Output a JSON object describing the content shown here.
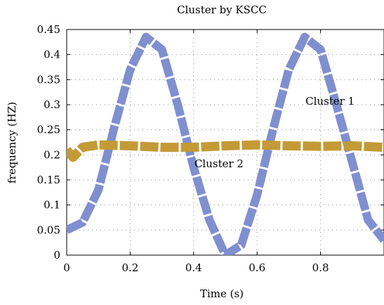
{
  "chart_data": {
    "type": "line",
    "title": "Cluster by KSCC",
    "xlabel": "Time (s)",
    "ylabel": "frequency (HZ)",
    "xlim": [
      0,
      1
    ],
    "ylim": [
      0,
      0.45
    ],
    "x_ticks": [
      0,
      0.2,
      0.4,
      0.6,
      0.8
    ],
    "x_tick_labels": [
      "0",
      "0.2",
      "0.4",
      "0.6",
      "0.8"
    ],
    "y_ticks": [
      0,
      0.05,
      0.1,
      0.15,
      0.2,
      0.25,
      0.3,
      0.35,
      0.4,
      0.45
    ],
    "y_tick_labels": [
      "0",
      "0.05",
      "0.1",
      "0.15",
      "0.2",
      "0.25",
      "0.3",
      "0.35",
      "0.4",
      "0.45"
    ],
    "grid": true,
    "series": [
      {
        "name": "Cluster 1",
        "color": "#7f8fcf",
        "x": [
          0,
          0.05,
          0.1,
          0.15,
          0.2,
          0.25,
          0.3,
          0.35,
          0.4,
          0.45,
          0.5,
          0.55,
          0.6,
          0.65,
          0.7,
          0.75,
          0.8,
          0.85,
          0.9,
          0.95,
          1.0
        ],
        "values": [
          0.05,
          0.065,
          0.13,
          0.255,
          0.37,
          0.435,
          0.41,
          0.3,
          0.175,
          0.07,
          0.0,
          0.02,
          0.12,
          0.25,
          0.37,
          0.435,
          0.41,
          0.3,
          0.185,
          0.07,
          0.03
        ]
      },
      {
        "name": "Cluster 2",
        "color": "#c39a36",
        "x": [
          0,
          0.02,
          0.05,
          0.1,
          0.2,
          0.3,
          0.4,
          0.5,
          0.6,
          0.7,
          0.8,
          0.9,
          1.0
        ],
        "values": [
          0.21,
          0.195,
          0.215,
          0.22,
          0.218,
          0.215,
          0.215,
          0.218,
          0.22,
          0.218,
          0.217,
          0.218,
          0.215
        ]
      }
    ],
    "annotations": [
      {
        "text": "Cluster 1",
        "x": 0.83,
        "y": 0.3
      },
      {
        "text": "Cluster 2",
        "x": 0.48,
        "y": 0.175
      }
    ]
  }
}
